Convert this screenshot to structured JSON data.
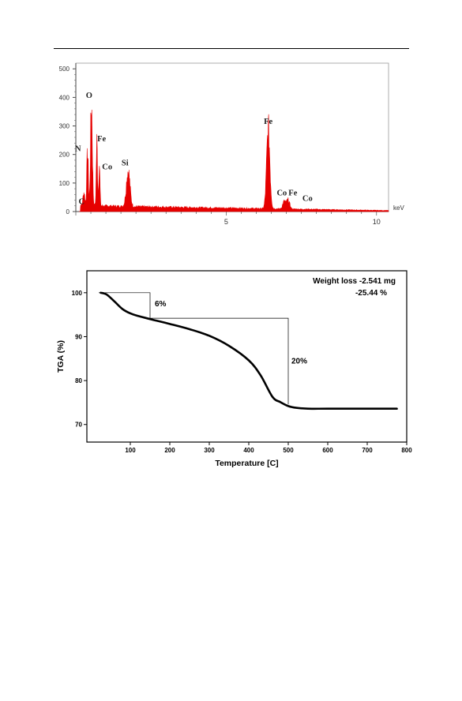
{
  "chart_data": [
    {
      "type": "line",
      "xlabel": "",
      "x_unit": "keV",
      "ylabel": "",
      "xlim": [
        0,
        10.4
      ],
      "ylim": [
        0,
        520
      ],
      "x_ticks": [
        5,
        10
      ],
      "y_ticks": [
        0,
        100,
        200,
        300,
        400,
        500
      ],
      "fill_color": "#e60000",
      "grid": false,
      "peaks": [
        {
          "label": "C",
          "energy": 0.27,
          "counts": 60
        },
        {
          "label": "O",
          "energy": 0.52,
          "counts": 370
        },
        {
          "label": "N",
          "energy": 0.39,
          "counts": 200
        },
        {
          "label": "Fe",
          "energy": 0.7,
          "counts": 235
        },
        {
          "label": "Co",
          "energy": 0.78,
          "counts": 165
        },
        {
          "label": "Si",
          "energy": 1.74,
          "counts": 140
        },
        {
          "label": "Fe",
          "energy": 6.4,
          "counts": 285
        },
        {
          "label": "Co",
          "energy": 6.93,
          "counts": 40
        },
        {
          "label": "Fe",
          "energy": 7.06,
          "counts": 45
        },
        {
          "label": "Co",
          "energy": 7.65,
          "counts": 15
        }
      ]
    },
    {
      "type": "line",
      "xlabel": "Temperature [C]",
      "ylabel": "TGA (%)",
      "xlim": [
        -10,
        800
      ],
      "ylim": [
        66,
        105
      ],
      "x_ticks": [
        100,
        200,
        300,
        400,
        500,
        600,
        700,
        800
      ],
      "y_ticks": [
        70,
        80,
        90,
        100
      ],
      "grid": false,
      "annotation_lines": [
        "Weight loss -2.541 mg",
        "-25.44 %"
      ],
      "step_labels": [
        {
          "text": "6%",
          "x_from": 20,
          "x_to": 150,
          "y_from": 100,
          "y_to": 94.2
        },
        {
          "text": "20%",
          "x_from": 150,
          "x_to": 500,
          "y_from": 94.2,
          "y_to": 74.6
        }
      ],
      "series": [
        {
          "x": [
            25,
            40,
            60,
            80,
            100,
            120,
            150,
            200,
            250,
            300,
            350,
            400,
            430,
            460,
            480,
            500,
            520,
            550,
            600,
            700,
            775
          ],
          "y": [
            100,
            99.6,
            98.0,
            96.3,
            95.3,
            94.7,
            94.0,
            92.9,
            91.7,
            90.2,
            87.9,
            84.6,
            81.2,
            76.3,
            75.1,
            74.2,
            73.8,
            73.6,
            73.6,
            73.6,
            73.6
          ]
        }
      ]
    }
  ]
}
